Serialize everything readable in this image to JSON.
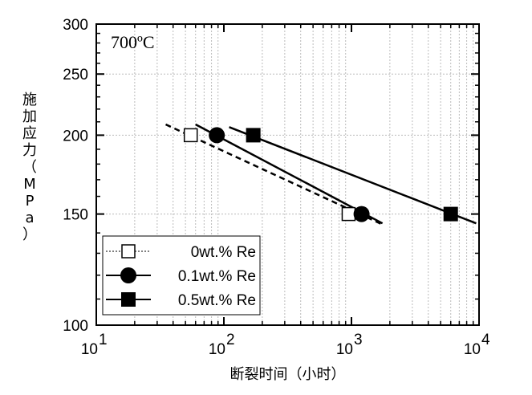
{
  "chart_data": {
    "type": "scatter",
    "annotation": "700ºC",
    "xlabel": "断裂时间（小时）",
    "ylabel": "施加应力（MPa）",
    "x_scale": "log",
    "y_scale": "log",
    "xlim": [
      10,
      10000
    ],
    "ylim": [
      100,
      300
    ],
    "x_ticks": [
      {
        "value": 10,
        "base": "10",
        "exp": "1"
      },
      {
        "value": 100,
        "base": "10",
        "exp": "2"
      },
      {
        "value": 1000,
        "base": "10",
        "exp": "3"
      },
      {
        "value": 10000,
        "base": "10",
        "exp": "4"
      }
    ],
    "y_ticks": [
      100,
      150,
      200,
      250,
      300
    ],
    "grid": true,
    "legend_position": "bottom-left",
    "series": [
      {
        "name": "0wt.% Re",
        "marker": "square-open",
        "line": "dashed",
        "points": [
          {
            "x": 55,
            "y": 200
          },
          {
            "x": 950,
            "y": 150
          }
        ],
        "fit": [
          {
            "x": 35,
            "y": 208
          },
          {
            "x": 1800,
            "y": 144
          }
        ]
      },
      {
        "name": "0.1wt.% Re",
        "marker": "circle-filled",
        "line": "solid",
        "points": [
          {
            "x": 88,
            "y": 200
          },
          {
            "x": 1200,
            "y": 150
          }
        ],
        "fit": [
          {
            "x": 60,
            "y": 208
          },
          {
            "x": 1750,
            "y": 145
          }
        ]
      },
      {
        "name": "0.5wt.% Re",
        "marker": "square-filled",
        "line": "solid",
        "points": [
          {
            "x": 170,
            "y": 200
          },
          {
            "x": 6000,
            "y": 150
          }
        ],
        "fit": [
          {
            "x": 110,
            "y": 206
          },
          {
            "x": 9500,
            "y": 145
          }
        ]
      }
    ]
  }
}
